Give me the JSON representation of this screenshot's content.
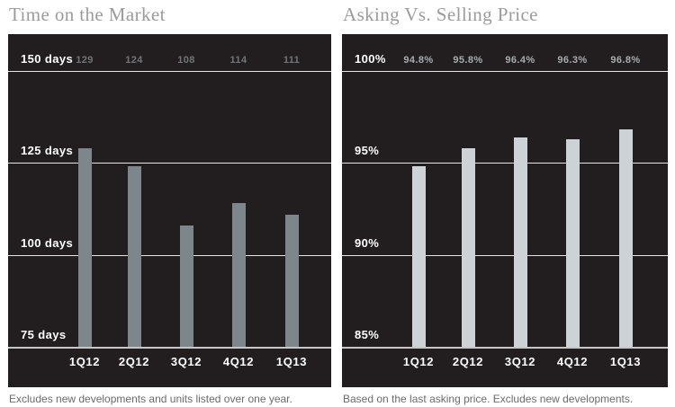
{
  "chart_data": [
    {
      "type": "bar",
      "title": "Time on the Market",
      "categories": [
        "1Q12",
        "2Q12",
        "3Q12",
        "4Q12",
        "1Q13"
      ],
      "values": [
        129,
        124,
        108,
        114,
        111
      ],
      "value_labels": [
        "129",
        "124",
        "108",
        "114",
        "111"
      ],
      "xlabel": "",
      "ylabel": "",
      "ylim": [
        75,
        150
      ],
      "yticks": [
        150,
        125,
        100,
        75
      ],
      "ytick_labels": [
        "150 days",
        "125 days",
        "100 days",
        "75 days"
      ],
      "grid": "horizontal",
      "legend": false,
      "caption": "Excludes new developments and units listed over one year.",
      "colors": {
        "panel_bg": "#221e1f",
        "bar": "#7d868b",
        "value_label": "#717578",
        "tick_label": "#ffffff",
        "gridline": "#e8e6e4",
        "title": "#9b9b9b",
        "caption": "#6b6b6b"
      }
    },
    {
      "type": "bar",
      "title": "Asking Vs. Selling Price",
      "categories": [
        "1Q12",
        "2Q12",
        "3Q12",
        "4Q12",
        "1Q13"
      ],
      "values": [
        94.8,
        95.8,
        96.4,
        96.3,
        96.8
      ],
      "value_labels": [
        "94.8%",
        "95.8%",
        "96.4%",
        "96.3%",
        "96.8%"
      ],
      "xlabel": "",
      "ylabel": "",
      "ylim": [
        85,
        100
      ],
      "yticks": [
        100,
        95,
        90,
        85
      ],
      "ytick_labels": [
        "100%",
        "95%",
        "90%",
        "85%"
      ],
      "grid": "horizontal",
      "legend": false,
      "caption": "Based on the last asking price. Excludes new developments.",
      "colors": {
        "panel_bg": "#221e1f",
        "bar": "#cdd2d6",
        "value_label": "#a7acaf",
        "tick_label": "#ffffff",
        "gridline": "#e8e6e4",
        "title": "#9b9b9b",
        "caption": "#6b6b6b"
      }
    }
  ]
}
